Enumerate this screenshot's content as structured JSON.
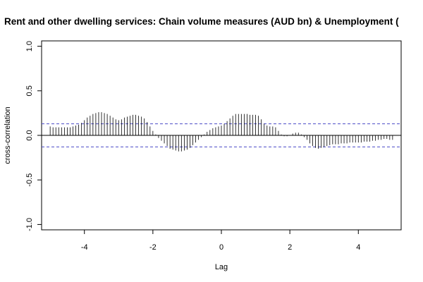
{
  "chart_data": {
    "type": "bar",
    "title": "Rent and other dwelling services: Chain volume measures (AUD bn) & Unemployment (",
    "xlabel": "Lag",
    "ylabel": "cross-correlation",
    "xlim": [
      -5.25,
      5.25
    ],
    "ylim": [
      -1.06,
      1.06
    ],
    "x_ticks": [
      -4,
      -2,
      0,
      2,
      4
    ],
    "x_tick_labels": [
      "-4",
      "-2",
      "0",
      "2",
      "4"
    ],
    "y_ticks": [
      -1.0,
      -0.5,
      0.0,
      0.5,
      1.0
    ],
    "y_tick_labels": [
      "-1.0",
      "-0.5",
      "0.0",
      "0.5",
      "1.0"
    ],
    "confidence_band": 0.13,
    "lag_range": [
      -5,
      5
    ],
    "lag_step": 0.0833333,
    "series": [
      {
        "values": [
          0.1,
          0.09,
          0.09,
          0.09,
          0.09,
          0.09,
          0.09,
          0.09,
          0.1,
          0.11,
          0.12,
          0.14,
          0.17,
          0.2,
          0.22,
          0.24,
          0.25,
          0.26,
          0.26,
          0.25,
          0.24,
          0.22,
          0.2,
          0.18,
          0.17,
          0.18,
          0.2,
          0.21,
          0.22,
          0.23,
          0.23,
          0.22,
          0.21,
          0.19,
          0.15,
          0.1,
          0.05,
          0.01,
          -0.03,
          -0.06,
          -0.09,
          -0.12,
          -0.15,
          -0.16,
          -0.17,
          -0.18,
          -0.18,
          -0.17,
          -0.16,
          -0.14,
          -0.11,
          -0.08,
          -0.05,
          -0.02,
          0.01,
          0.04,
          0.06,
          0.08,
          0.09,
          0.1,
          0.11,
          0.13,
          0.16,
          0.19,
          0.22,
          0.24,
          0.24,
          0.24,
          0.24,
          0.24,
          0.23,
          0.23,
          0.23,
          0.22,
          0.18,
          0.13,
          0.11,
          0.1,
          0.1,
          0.09,
          0.05,
          0.01,
          -0.01,
          -0.01,
          0.0,
          0.02,
          0.03,
          0.03,
          0.01,
          -0.02,
          -0.05,
          -0.09,
          -0.12,
          -0.14,
          -0.15,
          -0.14,
          -0.13,
          -0.12,
          -0.11,
          -0.1,
          -0.1,
          -0.1,
          -0.09,
          -0.09,
          -0.09,
          -0.08,
          -0.08,
          -0.08,
          -0.08,
          -0.08,
          -0.07,
          -0.07,
          -0.07,
          -0.06,
          -0.06,
          -0.05,
          -0.05,
          -0.04,
          -0.04,
          -0.05,
          -0.05
        ]
      }
    ]
  }
}
